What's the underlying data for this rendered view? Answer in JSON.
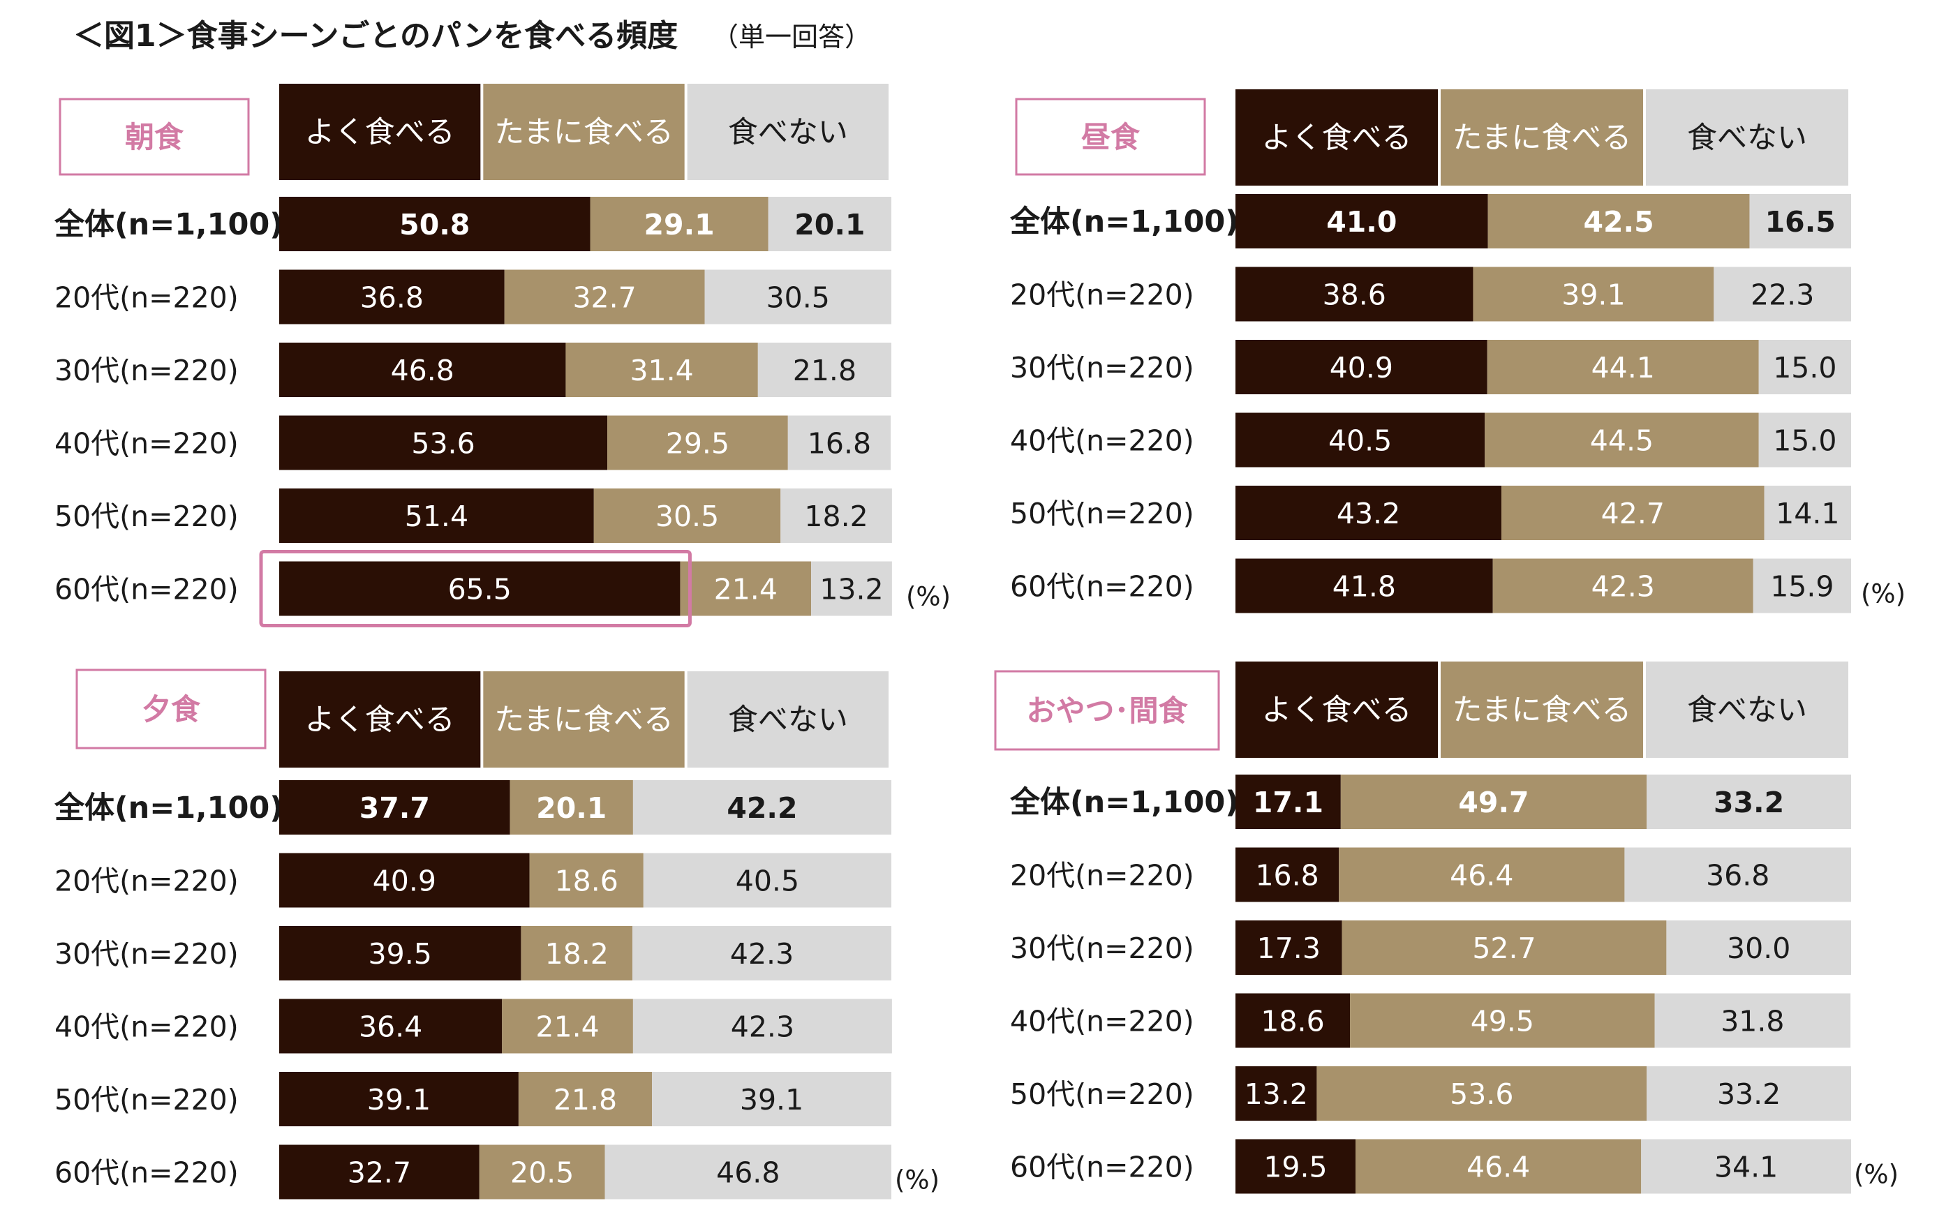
{
  "title": "＜図1＞食事シーンごとのパンを食べる頻度",
  "subtitle": "（単一回答）",
  "unit_label": "(%)",
  "colors": {
    "often": "#2a0f05",
    "sometimes": "#a8926b",
    "never": "#d9d9d9",
    "accent": "#d27aa4"
  },
  "chart_data": [
    {
      "type": "bar",
      "orientation": "horizontal-stacked-100",
      "title": "朝食",
      "legend": [
        "よく食べる",
        "たまに食べる",
        "食べない"
      ],
      "categories": [
        "全体(n=1,100)",
        "20代(n=220)",
        "30代(n=220)",
        "40代(n=220)",
        "50代(n=220)",
        "60代(n=220)"
      ],
      "series": [
        {
          "name": "よく食べる",
          "values": [
            50.8,
            36.8,
            46.8,
            53.6,
            51.4,
            65.5
          ]
        },
        {
          "name": "たまに食べる",
          "values": [
            29.1,
            32.7,
            31.4,
            29.5,
            30.5,
            21.4
          ]
        },
        {
          "name": "食べない",
          "values": [
            20.1,
            30.5,
            21.8,
            16.8,
            18.2,
            13.2
          ]
        }
      ],
      "highlight": {
        "category": "60代(n=220)",
        "series": "よく食べる"
      },
      "unit": "(%)"
    },
    {
      "type": "bar",
      "orientation": "horizontal-stacked-100",
      "title": "昼食",
      "legend": [
        "よく食べる",
        "たまに食べる",
        "食べない"
      ],
      "categories": [
        "全体(n=1,100)",
        "20代(n=220)",
        "30代(n=220)",
        "40代(n=220)",
        "50代(n=220)",
        "60代(n=220)"
      ],
      "series": [
        {
          "name": "よく食べる",
          "values": [
            41.0,
            38.6,
            40.9,
            40.5,
            43.2,
            41.8
          ]
        },
        {
          "name": "たまに食べる",
          "values": [
            42.5,
            39.1,
            44.1,
            44.5,
            42.7,
            42.3
          ]
        },
        {
          "name": "食べない",
          "values": [
            16.5,
            22.3,
            15.0,
            15.0,
            14.1,
            15.9
          ]
        }
      ],
      "unit": "(%)"
    },
    {
      "type": "bar",
      "orientation": "horizontal-stacked-100",
      "title": "夕食",
      "legend": [
        "よく食べる",
        "たまに食べる",
        "食べない"
      ],
      "categories": [
        "全体(n=1,100)",
        "20代(n=220)",
        "30代(n=220)",
        "40代(n=220)",
        "50代(n=220)",
        "60代(n=220)"
      ],
      "series": [
        {
          "name": "よく食べる",
          "values": [
            37.7,
            40.9,
            39.5,
            36.4,
            39.1,
            32.7
          ]
        },
        {
          "name": "たまに食べる",
          "values": [
            20.1,
            18.6,
            18.2,
            21.4,
            21.8,
            20.5
          ]
        },
        {
          "name": "食べない",
          "values": [
            42.2,
            40.5,
            42.3,
            42.3,
            39.1,
            46.8
          ]
        }
      ],
      "unit": "(%)"
    },
    {
      "type": "bar",
      "orientation": "horizontal-stacked-100",
      "title": "おやつ･間食",
      "legend": [
        "よく食べる",
        "たまに食べる",
        "食べない"
      ],
      "categories": [
        "全体(n=1,100)",
        "20代(n=220)",
        "30代(n=220)",
        "40代(n=220)",
        "50代(n=220)",
        "60代(n=220)"
      ],
      "series": [
        {
          "name": "よく食べる",
          "values": [
            17.1,
            16.8,
            17.3,
            18.6,
            13.2,
            19.5
          ]
        },
        {
          "name": "たまに食べる",
          "values": [
            49.7,
            46.4,
            52.7,
            49.5,
            53.6,
            46.4
          ]
        },
        {
          "name": "食べない",
          "values": [
            33.2,
            36.8,
            30.0,
            31.8,
            33.2,
            34.1
          ]
        }
      ],
      "unit": "(%)"
    }
  ]
}
